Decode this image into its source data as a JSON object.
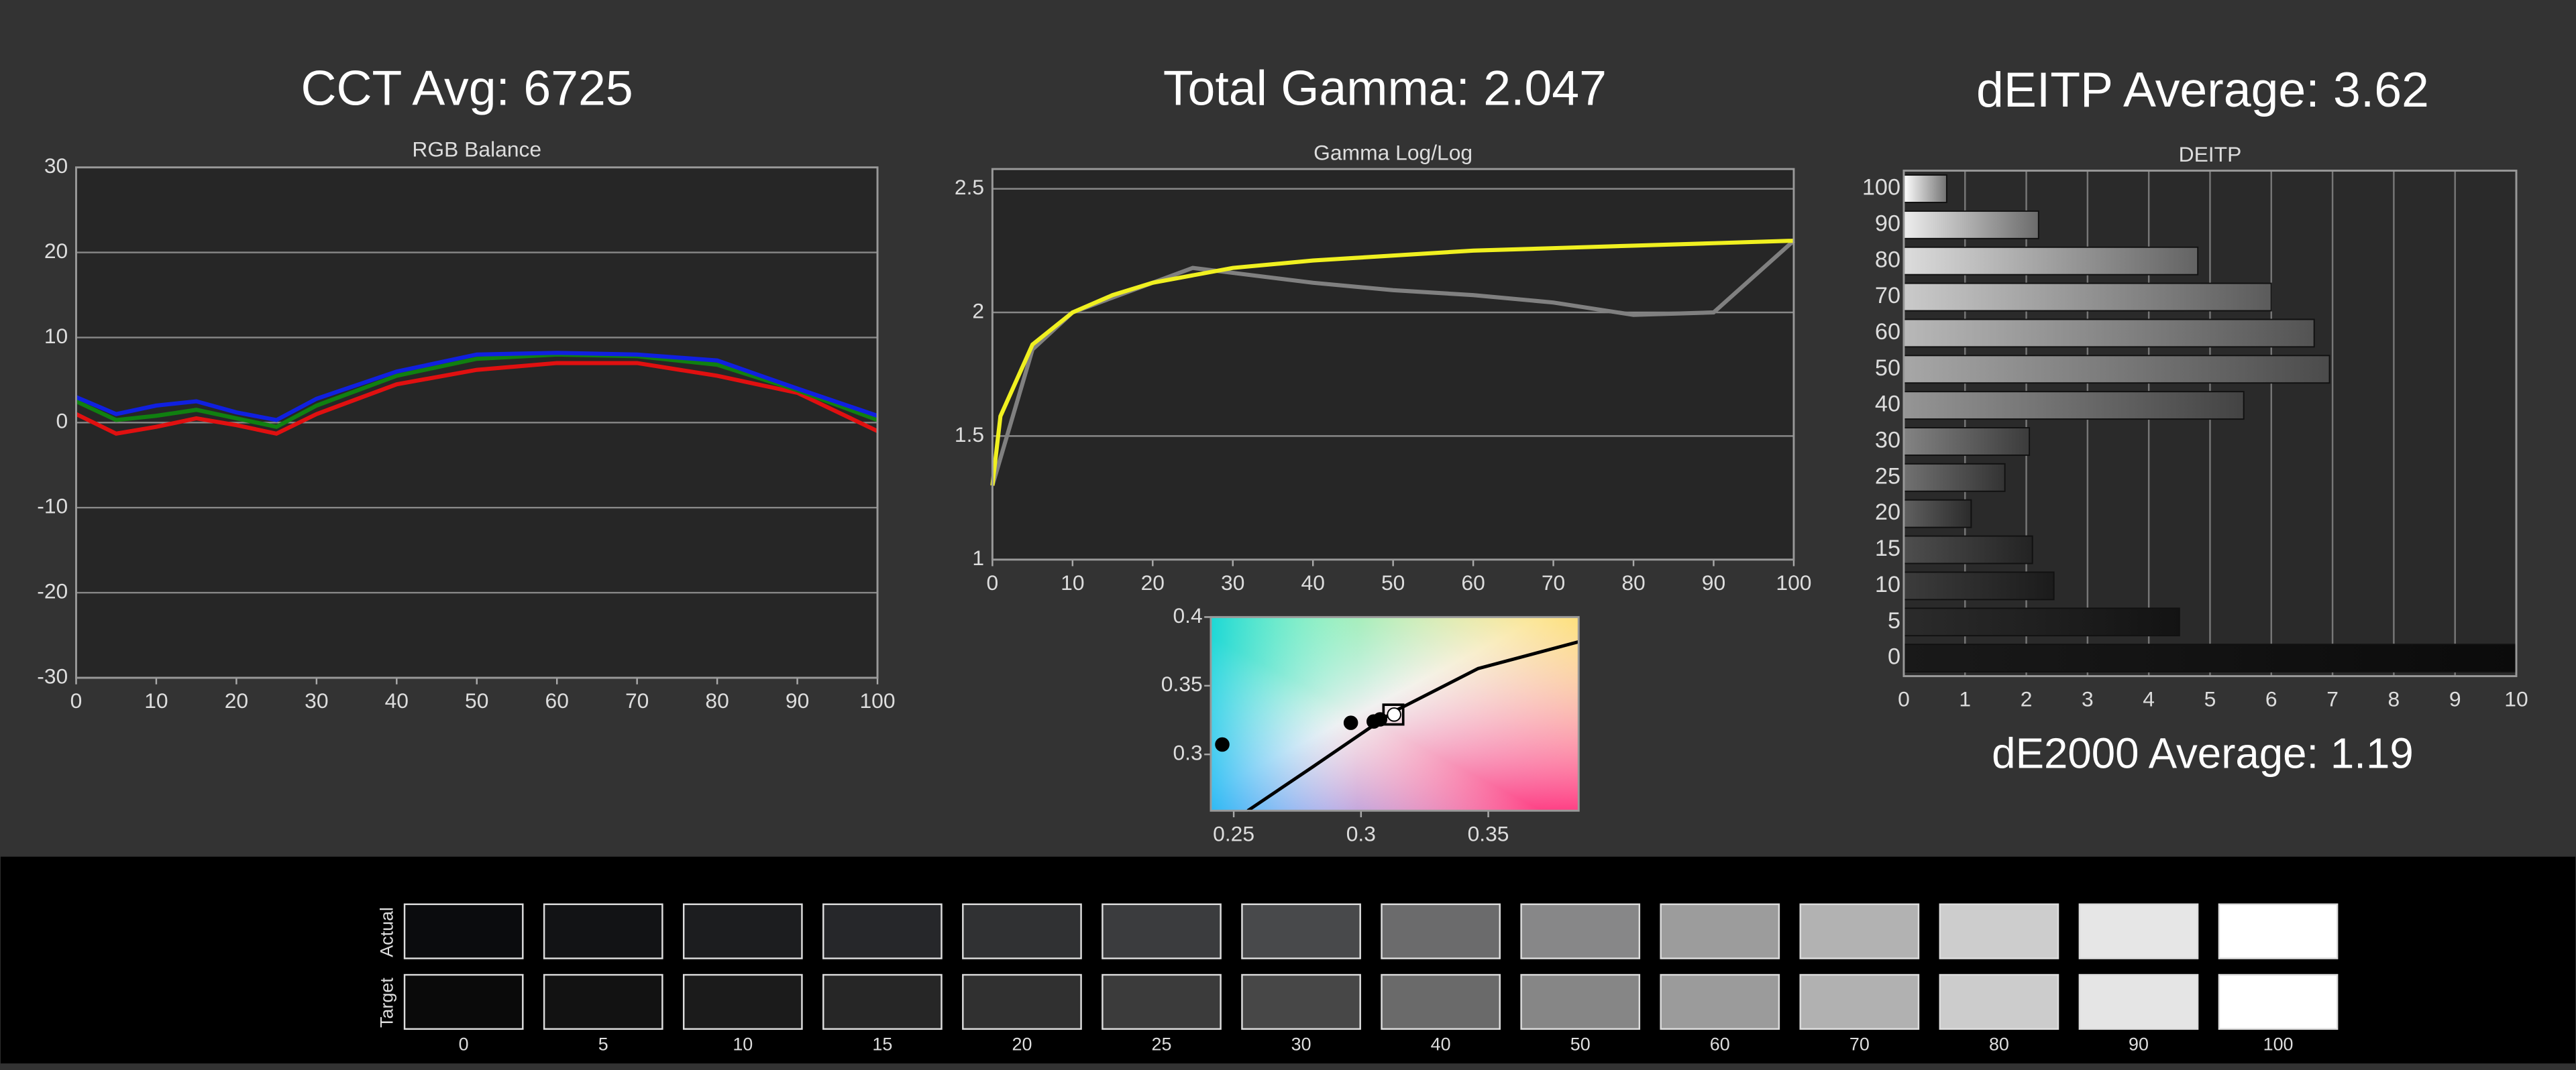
{
  "chart_data": [
    {
      "type": "line",
      "header": "CCT Avg: 6725",
      "title": "RGB Balance",
      "x": [
        0,
        5,
        10,
        15,
        20,
        25,
        30,
        40,
        50,
        60,
        70,
        80,
        90,
        100
      ],
      "series": [
        {
          "color": "#e01010",
          "values": [
            1,
            -1.3,
            -0.5,
            0.5,
            -0.3,
            -1.3,
            1,
            4.5,
            6.2,
            7,
            7,
            5.5,
            3.5,
            -1
          ]
        },
        {
          "color": "#108010",
          "values": [
            2.5,
            0.3,
            0.8,
            1.5,
            0.5,
            -0.5,
            2,
            5.5,
            7.5,
            8,
            7.8,
            6.8,
            3.8,
            0.3
          ]
        },
        {
          "color": "#1020e0",
          "values": [
            3,
            1,
            2,
            2.5,
            1.2,
            0.3,
            2.8,
            6,
            8,
            8.2,
            8,
            7.3,
            4,
            0.8
          ]
        }
      ],
      "xlim": [
        0,
        100
      ],
      "xticks": [
        0,
        10,
        20,
        30,
        40,
        50,
        60,
        70,
        80,
        90,
        100
      ],
      "ylim": [
        -30,
        30
      ],
      "yticks": [
        -30,
        -20,
        -10,
        0,
        10,
        20,
        30
      ],
      "grid": true
    },
    {
      "type": "line",
      "header": "Total Gamma: 2.047",
      "title": "Gamma Log/Log",
      "series": [
        {
          "color": "#808080",
          "x": [
            0,
            5,
            10,
            15,
            20,
            25,
            30,
            40,
            50,
            60,
            70,
            80,
            90,
            100
          ],
          "values": [
            1.3,
            1.85,
            2.0,
            2.06,
            2.12,
            2.18,
            2.16,
            2.12,
            2.09,
            2.07,
            2.04,
            1.99,
            2.0,
            2.29
          ]
        },
        {
          "color": "#f0f020",
          "x": [
            0,
            1,
            5,
            10,
            15,
            20,
            30,
            40,
            50,
            60,
            70,
            80,
            90,
            100
          ],
          "values": [
            1.3,
            1.58,
            1.87,
            2.0,
            2.07,
            2.12,
            2.18,
            2.21,
            2.23,
            2.25,
            2.26,
            2.27,
            2.28,
            2.29
          ]
        }
      ],
      "xlim": [
        0,
        100
      ],
      "xticks": [
        0,
        10,
        20,
        30,
        40,
        50,
        60,
        70,
        80,
        90,
        100
      ],
      "ylim": [
        1,
        2.58
      ],
      "yticks": [
        1,
        1.5,
        2,
        2.5
      ],
      "grid": true
    },
    {
      "type": "scatter",
      "series": [
        {
          "color": "#000000",
          "marker": "line",
          "x": [
            0.2555,
            0.2815,
            0.3127,
            0.346,
            0.3855
          ],
          "values": [
            0.259,
            0.2915,
            0.331,
            0.3625,
            0.382
          ]
        },
        {
          "color": "#000000",
          "marker": "circle",
          "x": [
            0.2455,
            0.296,
            0.305,
            0.3075
          ],
          "values": [
            0.3072,
            0.323,
            0.324,
            0.3255
          ]
        },
        {
          "color": "#000000",
          "marker": "square",
          "x": [
            0.3127
          ],
          "values": [
            0.329
          ]
        },
        {
          "color": "#ffffff",
          "marker": "circle",
          "x": [
            0.313
          ],
          "values": [
            0.329
          ]
        }
      ],
      "xlim": [
        0.241,
        0.3855
      ],
      "xticks": [
        0.25,
        0.3,
        0.35
      ],
      "ylim": [
        0.259,
        0.4
      ],
      "yticks": [
        0.3,
        0.35,
        0.4
      ],
      "grid": false
    },
    {
      "type": "bar",
      "orientation": "horizontal",
      "header": "dEITP Average: 3.62",
      "title": "DEITP",
      "footer": "dE2000 Average: 1.19",
      "categories": [
        "100",
        "90",
        "80",
        "70",
        "60",
        "50",
        "40",
        "30",
        "25",
        "20",
        "15",
        "10",
        "5",
        "0"
      ],
      "values": [
        0.7,
        2.2,
        4.8,
        6.0,
        6.7,
        6.95,
        5.55,
        2.05,
        1.65,
        1.1,
        2.1,
        2.45,
        4.5,
        10.0
      ],
      "xlim": [
        0,
        10
      ],
      "xticks": [
        0,
        1,
        2,
        3,
        4,
        5,
        6,
        7,
        8,
        9,
        10
      ],
      "grid": true
    }
  ],
  "swatches": {
    "row_labels": [
      "Actual",
      "Target"
    ],
    "levels": [
      "0",
      "5",
      "10",
      "15",
      "20",
      "25",
      "30",
      "40",
      "50",
      "60",
      "70",
      "80",
      "90",
      "100"
    ],
    "actual": [
      "#0b0c0e",
      "#121315",
      "#1c1d1f",
      "#26272a",
      "#303133",
      "#3b3c3e",
      "#48494b",
      "#6b6b6c",
      "#878788",
      "#9c9c9c",
      "#b2b2b2",
      "#cdcdcd",
      "#e6e6e6",
      "#ffffff"
    ],
    "target": [
      "#0a0a0a",
      "#121212",
      "#1b1b1b",
      "#262626",
      "#303030",
      "#3b3b3b",
      "#474747",
      "#6a6a6a",
      "#868686",
      "#9b9b9b",
      "#b1b1b1",
      "#cccccc",
      "#e5e5e5",
      "#ffffff"
    ]
  }
}
